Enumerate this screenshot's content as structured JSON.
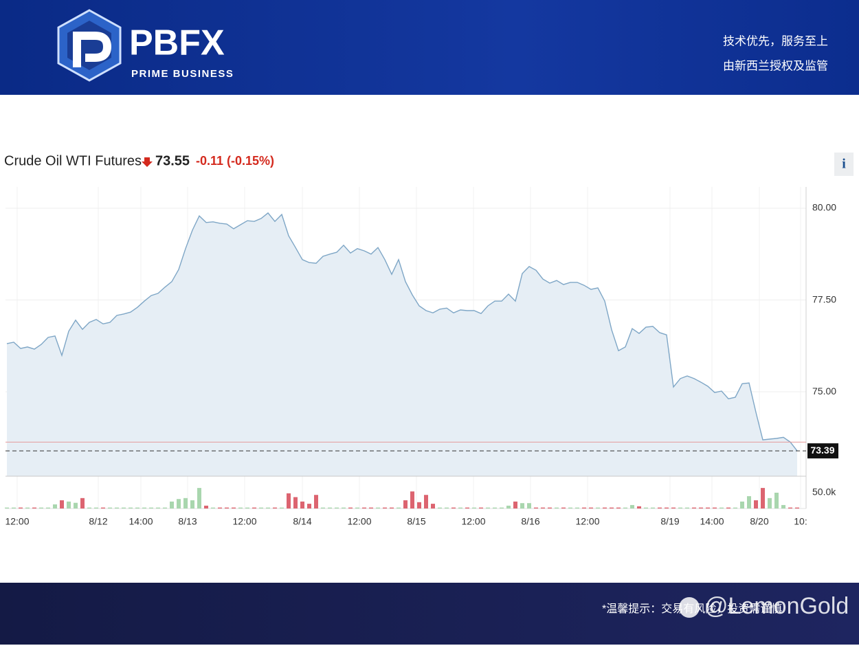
{
  "header": {
    "logo_text": "PBFX",
    "logo_subtitle": "PRIME BUSINESS",
    "slogan": "技术优先，服务至上",
    "regulation": "由新西兰授权及监管"
  },
  "chart_data": {
    "type": "line",
    "title": "Crude Oil WTI Futures",
    "price": "73.55",
    "change": "-0.11",
    "change_percent": "(-0.15%)",
    "info_button": "i",
    "color": "#7ea6c6",
    "fill": "#e6eef5",
    "grid": true,
    "values": [
      76.31,
      76.35,
      76.18,
      76.22,
      76.16,
      76.29,
      76.48,
      76.52,
      75.99,
      76.65,
      76.95,
      76.7,
      76.89,
      76.97,
      76.85,
      76.89,
      77.08,
      77.12,
      77.17,
      77.3,
      77.47,
      77.62,
      77.68,
      77.85,
      78.0,
      78.33,
      78.9,
      79.4,
      79.79,
      79.61,
      79.63,
      79.59,
      79.57,
      79.44,
      79.55,
      79.66,
      79.64,
      79.72,
      79.87,
      79.64,
      79.83,
      79.25,
      78.93,
      78.6,
      78.52,
      78.5,
      78.69,
      78.75,
      78.8,
      78.99,
      78.78,
      78.9,
      78.84,
      78.75,
      78.93,
      78.6,
      78.2,
      78.6,
      78.0,
      77.64,
      77.34,
      77.21,
      77.15,
      77.25,
      77.28,
      77.15,
      77.23,
      77.21,
      77.21,
      77.13,
      77.34,
      77.47,
      77.47,
      77.66,
      77.47,
      78.22,
      78.41,
      78.31,
      78.07,
      77.96,
      78.03,
      77.92,
      77.98,
      77.98,
      77.9,
      77.79,
      77.83,
      77.47,
      76.69,
      76.12,
      76.22,
      76.72,
      76.59,
      76.76,
      76.78,
      76.61,
      76.55,
      75.13,
      75.36,
      75.43,
      75.36,
      75.26,
      75.15,
      74.98,
      75.02,
      74.81,
      74.85,
      75.22,
      75.24,
      74.44,
      73.69,
      73.71,
      73.73,
      73.76,
      73.63,
      73.39
    ],
    "xlim": [
      -0.2,
      116.3
    ],
    "xticks": [
      {
        "value": 1.5,
        "label": "12:00"
      },
      {
        "value": 13.3,
        "label": "8/12"
      },
      {
        "value": 19.5,
        "label": "14:00"
      },
      {
        "value": 26.3,
        "label": "8/13"
      },
      {
        "value": 34.6,
        "label": "12:00"
      },
      {
        "value": 43,
        "label": "8/14"
      },
      {
        "value": 51.3,
        "label": "12:00"
      },
      {
        "value": 59.6,
        "label": "8/15"
      },
      {
        "value": 67.9,
        "label": "12:00"
      },
      {
        "value": 76.2,
        "label": "8/16"
      },
      {
        "value": 84.5,
        "label": "12:00"
      },
      {
        "value": 96.5,
        "label": "8/19"
      },
      {
        "value": 102.6,
        "label": "14:00"
      },
      {
        "value": 109.5,
        "label": "8/20"
      },
      {
        "value": 115.5,
        "label": "10:"
      }
    ],
    "ylim": [
      72.7,
      80.58
    ],
    "yticks": [
      {
        "value": 80,
        "label": "80.00"
      },
      {
        "value": 77.5,
        "label": "77.50"
      },
      {
        "value": 75,
        "label": "75.00"
      }
    ],
    "reference_line": 73.63,
    "last_price": 73.39,
    "volume": {
      "up_color": "#a9d6ae",
      "down_color": "#dc6470",
      "values": [
        3000,
        3000,
        3000,
        3000,
        3000,
        3000,
        3000,
        13000,
        26000,
        22000,
        18000,
        33000,
        3000,
        3000,
        3000,
        3000,
        3000,
        3000,
        3000,
        3000,
        3000,
        3000,
        3000,
        3000,
        22000,
        30000,
        33000,
        26000,
        65000,
        9000,
        3000,
        3000,
        3000,
        3000,
        3000,
        3000,
        3000,
        3000,
        3000,
        3000,
        3000,
        48000,
        36000,
        22000,
        15000,
        43000,
        3000,
        3000,
        3000,
        3000,
        3000,
        3000,
        3000,
        3000,
        3000,
        3000,
        3000,
        3000,
        26000,
        54000,
        20000,
        43000,
        15000,
        3000,
        3000,
        3000,
        3000,
        3000,
        3000,
        3000,
        3000,
        3000,
        3000,
        9000,
        22000,
        17000,
        17000,
        3000,
        3000,
        3000,
        3000,
        3000,
        3000,
        3000,
        3000,
        3000,
        3000,
        3000,
        3000,
        3000,
        3000,
        11000,
        7000,
        3000,
        3000,
        3000,
        3000,
        3000,
        3000,
        3000,
        3000,
        3000,
        3000,
        3000,
        3000,
        3000,
        3000,
        22000,
        39000,
        26000,
        65000,
        33000,
        50000,
        11000,
        3000,
        3000
      ],
      "ylim": [
        0,
        93500
      ],
      "yticks": [
        {
          "value": 50000,
          "label": "50.0k"
        }
      ]
    }
  },
  "footer": {
    "notice": "*温馨提示：交易有风险，投资需谨慎",
    "watermark": "@LemonGold"
  }
}
